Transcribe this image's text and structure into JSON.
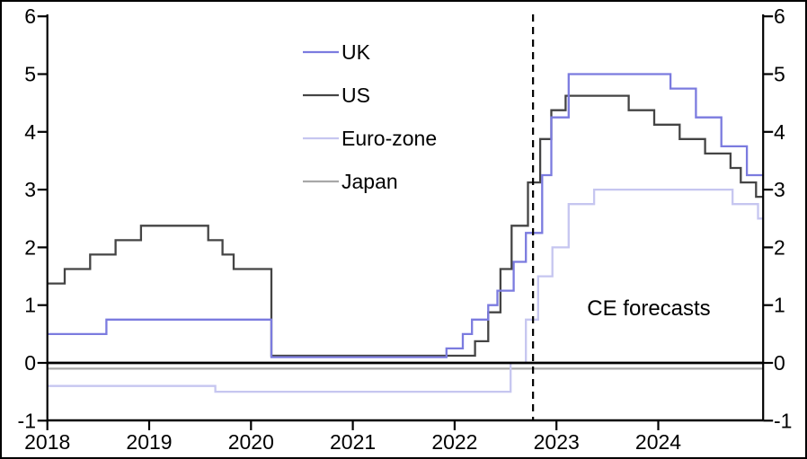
{
  "figure": {
    "background": "#ffffff",
    "border_color": "#000000"
  },
  "chart_data": {
    "type": "line",
    "subtype": "step",
    "title": "",
    "xlabel": "",
    "ylabel": "",
    "grid": false,
    "legend_position": "inside-top-left",
    "annotation": {
      "text": "CE forecasts"
    },
    "forecast_divider": {
      "style": "dashed-vertical",
      "x": 2022.77
    },
    "x_axis": {
      "range": [
        2018,
        2025.03
      ],
      "tick_labels": [
        "2018",
        "2019",
        "2020",
        "2021",
        "2022",
        "2023",
        "2024"
      ],
      "tick_values": [
        2018,
        2019,
        2020,
        2021,
        2022,
        2023,
        2024
      ]
    },
    "y_axis": {
      "range": [
        -1,
        6
      ],
      "ticks": [
        6,
        5,
        4,
        3,
        2,
        1,
        0,
        -1
      ],
      "mirrored_right": true,
      "zero_line": 0
    },
    "series": [
      {
        "name": "UK",
        "color": "#7b7bdf",
        "points": [
          [
            2018.0,
            0.5
          ],
          [
            2018.58,
            0.75
          ],
          [
            2020.2,
            0.1
          ],
          [
            2021.92,
            0.25
          ],
          [
            2022.08,
            0.5
          ],
          [
            2022.17,
            0.75
          ],
          [
            2022.33,
            1.0
          ],
          [
            2022.42,
            1.25
          ],
          [
            2022.58,
            1.75
          ],
          [
            2022.7,
            2.25
          ],
          [
            2022.86,
            3.25
          ],
          [
            2022.95,
            4.25
          ],
          [
            2023.12,
            5.0
          ],
          [
            2024.12,
            4.75
          ],
          [
            2024.37,
            4.25
          ],
          [
            2024.62,
            3.75
          ],
          [
            2024.87,
            3.25
          ]
        ]
      },
      {
        "name": "US",
        "color": "#444444",
        "points": [
          [
            2018.0,
            1.375
          ],
          [
            2018.17,
            1.625
          ],
          [
            2018.42,
            1.875
          ],
          [
            2018.67,
            2.125
          ],
          [
            2018.92,
            2.375
          ],
          [
            2019.58,
            2.125
          ],
          [
            2019.72,
            1.875
          ],
          [
            2019.83,
            1.625
          ],
          [
            2020.2,
            0.125
          ],
          [
            2022.2,
            0.375
          ],
          [
            2022.33,
            0.875
          ],
          [
            2022.45,
            1.625
          ],
          [
            2022.56,
            2.375
          ],
          [
            2022.72,
            3.125
          ],
          [
            2022.84,
            3.875
          ],
          [
            2022.95,
            4.375
          ],
          [
            2023.09,
            4.625
          ],
          [
            2023.71,
            4.375
          ],
          [
            2023.96,
            4.125
          ],
          [
            2024.21,
            3.875
          ],
          [
            2024.46,
            3.625
          ],
          [
            2024.71,
            3.375
          ],
          [
            2024.81,
            3.125
          ],
          [
            2024.96,
            2.875
          ]
        ]
      },
      {
        "name": "Euro-zone",
        "color": "#c6c6f0",
        "points": [
          [
            2018.0,
            -0.4
          ],
          [
            2019.65,
            -0.5
          ],
          [
            2022.55,
            0.0
          ],
          [
            2022.7,
            0.75
          ],
          [
            2022.82,
            1.5
          ],
          [
            2022.96,
            2.0
          ],
          [
            2023.12,
            2.75
          ],
          [
            2023.37,
            3.0
          ],
          [
            2024.73,
            2.75
          ],
          [
            2024.98,
            2.5
          ]
        ]
      },
      {
        "name": "Japan",
        "color": "#a8a8a8",
        "points": [
          [
            2018.0,
            -0.1
          ]
        ]
      }
    ]
  }
}
